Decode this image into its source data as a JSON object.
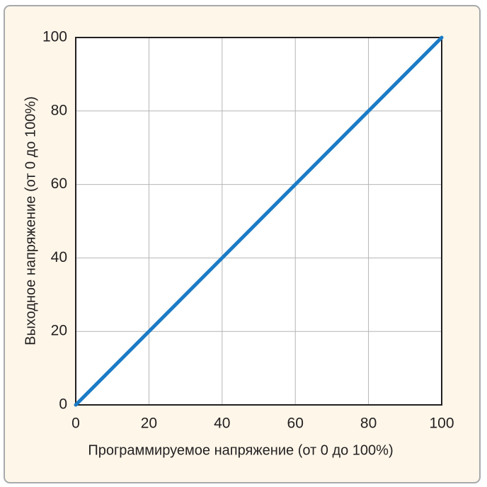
{
  "chart_data": {
    "type": "line",
    "x_label": "Программируемое напряжение (от 0 до 100%)",
    "y_label": "Выходное напряжение (от 0 до 100%)",
    "x": [
      0,
      100
    ],
    "series": [
      {
        "name": "Выходное напряжение",
        "color": "#1b7bc6",
        "values": [
          0,
          100
        ]
      }
    ],
    "xlim": [
      0,
      100
    ],
    "xticks": [
      0,
      20,
      40,
      60,
      80,
      100
    ],
    "ylim": [
      0,
      100
    ],
    "yticks": [
      0,
      20,
      40,
      60,
      80,
      100
    ],
    "grid": true
  }
}
